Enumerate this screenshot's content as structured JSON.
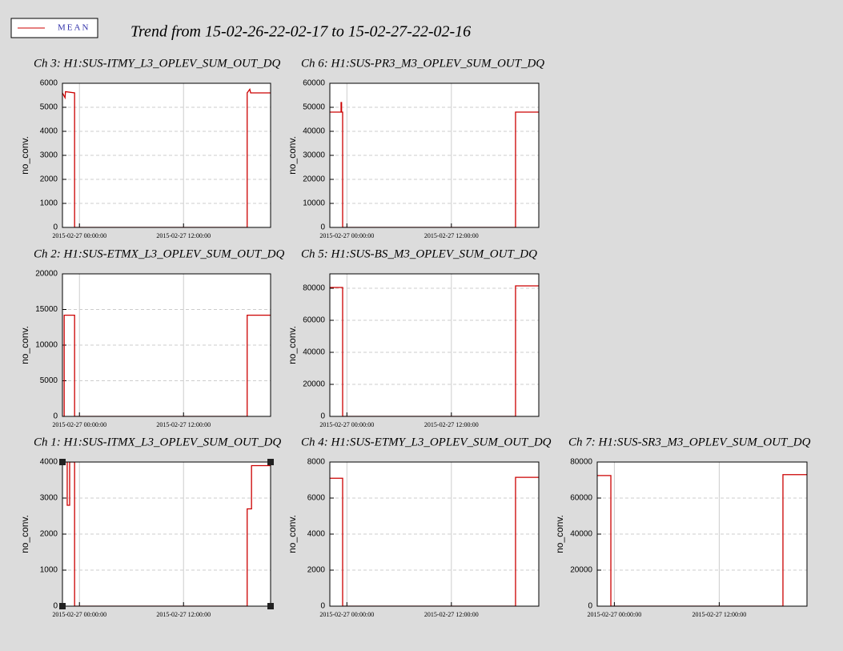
{
  "title": "Trend from 15-02-26-22-02-17 to 15-02-27-22-02-16",
  "legend": {
    "name": "MEAN",
    "color": "#cc0000"
  },
  "chart_data": [
    {
      "type": "line",
      "title": "Ch 3: H1:SUS-ITMY_L3_OPLEV_SUM_OUT_DQ",
      "ylabel": "no_conv.",
      "xlim": [
        0,
        24
      ],
      "xticks": [
        {
          "value": 1.96,
          "label": "2015-02-27 00:00:00"
        },
        {
          "value": 13.96,
          "label": "2015-02-27 12:00:00"
        }
      ],
      "ylim": [
        0,
        6000
      ],
      "yticks": [
        0,
        1000,
        2000,
        3000,
        4000,
        5000,
        6000
      ],
      "grid": true,
      "series": [
        {
          "color": "#cc0000",
          "x": [
            0,
            0.3,
            0.35,
            1.4,
            1.4,
            21.3,
            21.3,
            21.6,
            21.7,
            24
          ],
          "values": [
            5600,
            5400,
            5650,
            5600,
            0,
            0,
            5600,
            5750,
            5600,
            5600
          ]
        }
      ]
    },
    {
      "type": "line",
      "title": "Ch 6: H1:SUS-PR3_M3_OPLEV_SUM_OUT_DQ",
      "ylabel": "no_conv.",
      "xlim": [
        0,
        24
      ],
      "xticks": [
        {
          "value": 1.96,
          "label": "2015-02-27 00:00:00"
        },
        {
          "value": 13.96,
          "label": "2015-02-27 12:00:00"
        }
      ],
      "ylim": [
        0,
        60000
      ],
      "yticks": [
        0,
        10000,
        20000,
        30000,
        40000,
        50000,
        60000
      ],
      "grid": true,
      "series": [
        {
          "color": "#cc0000",
          "x": [
            0,
            1.29,
            1.29,
            1.35,
            1.35,
            1.47,
            1.47,
            21.33,
            21.33,
            24
          ],
          "values": [
            48000,
            48000,
            52000,
            52000,
            48000,
            48000,
            0,
            0,
            48000,
            48000
          ]
        }
      ]
    },
    {
      "type": "line",
      "title": "Ch 2: H1:SUS-ETMX_L3_OPLEV_SUM_OUT_DQ",
      "ylabel": "no_conv.",
      "xlim": [
        0,
        24
      ],
      "xticks": [
        {
          "value": 1.96,
          "label": "2015-02-27 00:00:00"
        },
        {
          "value": 13.96,
          "label": "2015-02-27 12:00:00"
        }
      ],
      "ylim": [
        0,
        20000
      ],
      "yticks": [
        0,
        5000,
        10000,
        15000,
        20000
      ],
      "grid": true,
      "series": [
        {
          "color": "#cc0000",
          "x": [
            0.2,
            0.2,
            1.4,
            1.4,
            21.3,
            21.3,
            24
          ],
          "values": [
            0,
            14200,
            14200,
            0,
            0,
            14200,
            14200
          ]
        }
      ]
    },
    {
      "type": "line",
      "title": "Ch 5: H1:SUS-BS_M3_OPLEV_SUM_OUT_DQ",
      "ylabel": "no_conv.",
      "xlim": [
        0,
        24
      ],
      "xticks": [
        {
          "value": 1.96,
          "label": "2015-02-27 00:00:00"
        },
        {
          "value": 13.96,
          "label": "2015-02-27 12:00:00"
        }
      ],
      "ylim": [
        0,
        89000
      ],
      "yticks": [
        0,
        20000,
        40000,
        60000,
        80000
      ],
      "grid": true,
      "series": [
        {
          "color": "#cc0000",
          "x": [
            0,
            1.47,
            1.47,
            21.33,
            21.33,
            24
          ],
          "values": [
            80500,
            80500,
            0,
            0,
            81500,
            81500
          ]
        }
      ]
    },
    {
      "type": "line",
      "title": "Ch 1: H1:SUS-ITMX_L3_OPLEV_SUM_OUT_DQ",
      "ylabel": "no_conv.",
      "xlim": [
        0,
        24
      ],
      "xticks": [
        {
          "value": 1.96,
          "label": "2015-02-27 00:00:00"
        },
        {
          "value": 13.96,
          "label": "2015-02-27 12:00:00"
        }
      ],
      "ylim": [
        0,
        4000
      ],
      "yticks": [
        0,
        1000,
        2000,
        3000,
        4000
      ],
      "grid": true,
      "series": [
        {
          "color": "#cc0000",
          "x": [
            0,
            0.55,
            0.55,
            0.83,
            0.83,
            1.4,
            1.4,
            21.3,
            21.3,
            21.8,
            21.8,
            24
          ],
          "values": [
            4000,
            4000,
            2800,
            2800,
            4000,
            4000,
            0,
            0,
            2700,
            2700,
            3900,
            3900
          ]
        }
      ]
    },
    {
      "type": "line",
      "title": "Ch 4: H1:SUS-ETMY_L3_OPLEV_SUM_OUT_DQ",
      "ylabel": "no_conv.",
      "xlim": [
        0,
        24
      ],
      "xticks": [
        {
          "value": 1.96,
          "label": "2015-02-27 00:00:00"
        },
        {
          "value": 13.96,
          "label": "2015-02-27 12:00:00"
        }
      ],
      "ylim": [
        0,
        8000
      ],
      "yticks": [
        0,
        2000,
        4000,
        6000,
        8000
      ],
      "grid": true,
      "series": [
        {
          "color": "#cc0000",
          "x": [
            0,
            1.47,
            1.47,
            21.33,
            21.33,
            24
          ],
          "values": [
            7100,
            7100,
            0,
            0,
            7150,
            7150
          ]
        }
      ]
    },
    {
      "type": "line",
      "title": "Ch 7: H1:SUS-SR3_M3_OPLEV_SUM_OUT_DQ",
      "ylabel": "no_conv.",
      "xlim": [
        0,
        24
      ],
      "xticks": [
        {
          "value": 1.96,
          "label": "2015-02-27 00:00:00"
        },
        {
          "value": 13.96,
          "label": "2015-02-27 12:00:00"
        }
      ],
      "ylim": [
        0,
        80000
      ],
      "yticks": [
        0,
        20000,
        40000,
        60000,
        80000
      ],
      "grid": true,
      "series": [
        {
          "color": "#cc0000",
          "x": [
            0,
            1.56,
            1.56,
            21.25,
            21.25,
            24
          ],
          "values": [
            72500,
            72500,
            0,
            0,
            73000,
            73000
          ]
        }
      ]
    }
  ]
}
